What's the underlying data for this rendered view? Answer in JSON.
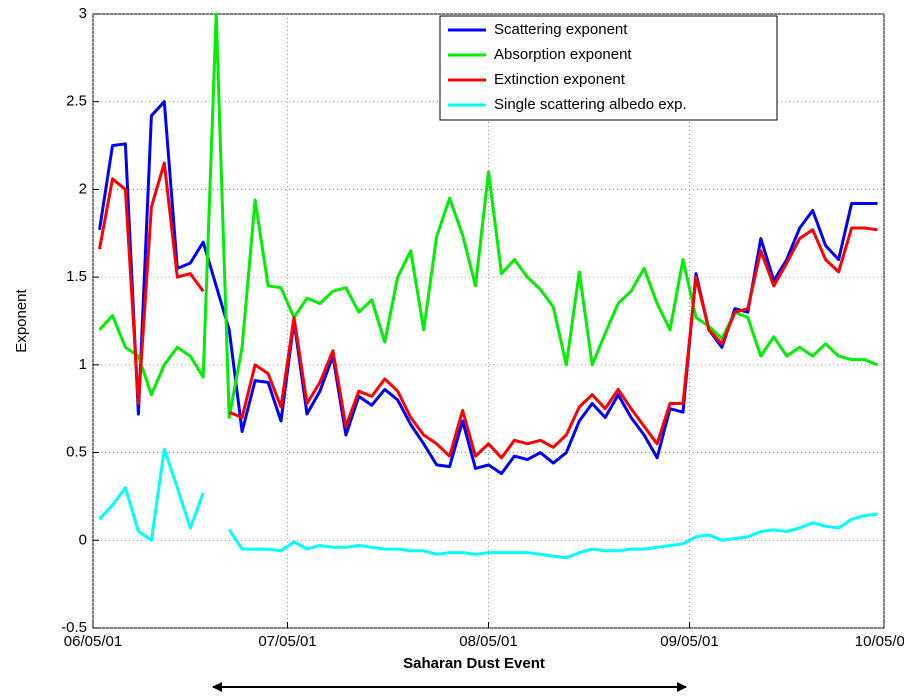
{
  "chart_data": {
    "type": "line",
    "ylabel": "Exponent",
    "annotations": [
      "Saharan Dust Event"
    ],
    "x": [
      1,
      3,
      5,
      7,
      9,
      11,
      13,
      15,
      17,
      19,
      21,
      23,
      25,
      27,
      29,
      31,
      33,
      35,
      37,
      39,
      41,
      43,
      45,
      47,
      49,
      51,
      53,
      55,
      57,
      59,
      61,
      63,
      65,
      67,
      69,
      71,
      73,
      75,
      77,
      79,
      81,
      83,
      85,
      87,
      89,
      91,
      93,
      95,
      97,
      99,
      101,
      103,
      105,
      107,
      109,
      111,
      113,
      115,
      117,
      119,
      121
    ],
    "xlim": [
      0,
      122
    ],
    "xticks": [
      {
        "value": 0,
        "label": "06/05/01"
      },
      {
        "value": 30,
        "label": "07/05/01"
      },
      {
        "value": 61,
        "label": "08/05/01"
      },
      {
        "value": 92,
        "label": "09/05/01"
      },
      {
        "value": 122,
        "label": "10/05/01"
      }
    ],
    "ylim": [
      -0.5,
      3
    ],
    "yticks": [
      -0.5,
      0,
      0.5,
      1,
      1.5,
      2,
      2.5,
      3
    ],
    "grid": true,
    "legend": "upper right",
    "series": [
      {
        "name": "Scattering exponent",
        "color": "#0000ff",
        "values": [
          1.77,
          2.25,
          2.26,
          0.72,
          2.42,
          2.5,
          1.55,
          1.58,
          1.7,
          1.45,
          1.2,
          0.62,
          0.91,
          0.9,
          0.68,
          1.25,
          0.72,
          0.85,
          1.05,
          0.6,
          0.82,
          0.77,
          0.86,
          0.8,
          0.66,
          0.55,
          0.43,
          0.42,
          0.68,
          0.41,
          0.43,
          0.38,
          0.48,
          0.46,
          0.5,
          0.44,
          0.5,
          0.68,
          0.78,
          0.7,
          0.83,
          0.7,
          0.6,
          0.47,
          0.75,
          0.73,
          1.52,
          1.2,
          1.1,
          1.32,
          1.3,
          1.72,
          1.48,
          1.6,
          1.78,
          1.88,
          1.68,
          1.6,
          1.92,
          1.92,
          1.92
        ]
      },
      {
        "name": "Absorption exponent",
        "color": "#00ee00",
        "values": [
          1.2,
          1.28,
          1.1,
          1.05,
          0.83,
          1.0,
          1.1,
          1.05,
          0.93,
          3.0,
          0.7,
          1.1,
          1.94,
          1.45,
          1.44,
          1.27,
          1.38,
          1.35,
          1.42,
          1.44,
          1.3,
          1.37,
          1.13,
          1.5,
          1.65,
          1.2,
          1.73,
          1.95,
          1.74,
          1.45,
          2.1,
          1.52,
          1.6,
          1.5,
          1.43,
          1.33,
          1.0,
          1.53,
          1.0,
          1.18,
          1.35,
          1.42,
          1.55,
          1.35,
          1.2,
          1.6,
          1.27,
          1.22,
          1.15,
          1.3,
          1.27,
          1.05,
          1.16,
          1.05,
          1.1,
          1.05,
          1.12,
          1.05,
          1.03,
          1.03,
          1.0
        ]
      },
      {
        "name": "Extinction exponent",
        "color": "#ff0000",
        "values": [
          1.66,
          2.06,
          2.0,
          0.78,
          1.9,
          2.15,
          1.5,
          1.52,
          1.42,
          null,
          0.73,
          0.7,
          1.0,
          0.95,
          0.76,
          1.27,
          0.78,
          0.9,
          1.08,
          0.65,
          0.85,
          0.82,
          0.92,
          0.85,
          0.7,
          0.6,
          0.55,
          0.48,
          0.74,
          0.48,
          0.55,
          0.47,
          0.57,
          0.55,
          0.57,
          0.53,
          0.6,
          0.76,
          0.83,
          0.75,
          0.86,
          0.75,
          0.65,
          0.55,
          0.78,
          0.78,
          1.5,
          1.2,
          1.12,
          1.3,
          1.32,
          1.65,
          1.45,
          1.58,
          1.72,
          1.77,
          1.6,
          1.53,
          1.78,
          1.78,
          1.77
        ]
      },
      {
        "name": "Single scattering albedo exp.",
        "color": "#00ffff",
        "values": [
          0.12,
          0.2,
          0.3,
          0.05,
          0.0,
          0.52,
          0.3,
          0.07,
          0.27,
          null,
          0.06,
          -0.05,
          -0.05,
          -0.05,
          -0.06,
          -0.01,
          -0.05,
          -0.03,
          -0.04,
          -0.04,
          -0.03,
          -0.04,
          -0.05,
          -0.05,
          -0.06,
          -0.06,
          -0.08,
          -0.07,
          -0.07,
          -0.08,
          -0.07,
          -0.07,
          -0.07,
          -0.07,
          -0.08,
          -0.09,
          -0.1,
          -0.07,
          -0.05,
          -0.06,
          -0.06,
          -0.05,
          -0.05,
          -0.04,
          -0.03,
          -0.02,
          0.02,
          0.03,
          0.0,
          0.01,
          0.02,
          0.05,
          0.06,
          0.05,
          0.07,
          0.1,
          0.08,
          0.07,
          0.12,
          0.14,
          0.15
        ]
      }
    ]
  }
}
